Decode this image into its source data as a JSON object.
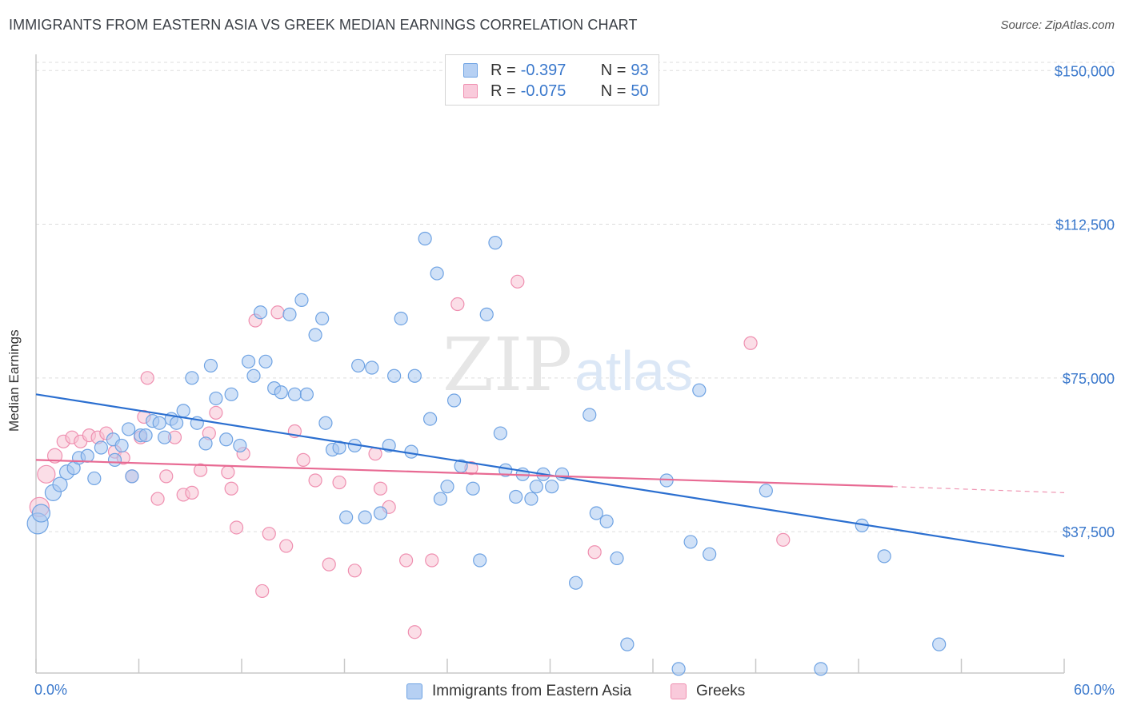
{
  "title": "IMMIGRANTS FROM EASTERN ASIA VS GREEK MEDIAN EARNINGS CORRELATION CHART",
  "source": "Source: ZipAtlas.com",
  "watermark": {
    "zip": "ZIP",
    "atlas": "atlas"
  },
  "legend": {
    "rows": [
      {
        "r_label": "R =",
        "r_value": "-0.397",
        "n_label": "N =",
        "n_value": "93"
      },
      {
        "r_label": "R =",
        "r_value": "-0.075",
        "n_label": "N =",
        "n_value": "50"
      }
    ]
  },
  "bottom_legend": [
    "Immigrants from Eastern Asia",
    "Greeks"
  ],
  "colors": {
    "blue": "#6fa3e3",
    "blue_fill": "#a9c8f0",
    "blue_line": "#2b6fd0",
    "pink": "#ef8fb0",
    "pink_fill": "#f7c2d4",
    "pink_line": "#e86a93",
    "tick_text": "#3a78cc",
    "grid": "#dddddd"
  },
  "chart_data": {
    "type": "scatter",
    "title": "IMMIGRANTS FROM EASTERN ASIA VS GREEK MEDIAN EARNINGS CORRELATION CHART",
    "xlabel": "",
    "ylabel": "Median Earnings",
    "xlim": [
      0,
      60
    ],
    "ylim": [
      3000,
      152000
    ],
    "x_tick_labels": [
      "0.0%",
      "60.0%"
    ],
    "y_ticks": [
      {
        "value": 37500,
        "label": "$37,500"
      },
      {
        "value": 75000,
        "label": "$75,000"
      },
      {
        "value": 112500,
        "label": "$112,500"
      },
      {
        "value": 150000,
        "label": "$150,000"
      }
    ],
    "grid": true,
    "series": [
      {
        "name": "Immigrants from Eastern Asia",
        "color": "blue",
        "r": -0.397,
        "n": 93,
        "trend": {
          "x0": 0,
          "y0": 71000,
          "x1": 60,
          "y1": 31500
        },
        "points": [
          [
            0.1,
            39500,
            13
          ],
          [
            0.3,
            42000,
            11
          ],
          [
            1.0,
            47000,
            10
          ],
          [
            1.4,
            49000,
            9
          ],
          [
            1.8,
            52000,
            9
          ],
          [
            2.2,
            53000,
            8
          ],
          [
            2.5,
            55500,
            8
          ],
          [
            3.0,
            56000,
            8
          ],
          [
            3.4,
            50500,
            8
          ],
          [
            3.8,
            58000,
            8
          ],
          [
            4.5,
            60000,
            8
          ],
          [
            4.6,
            55000,
            8
          ],
          [
            5.0,
            58500,
            8
          ],
          [
            5.4,
            62500,
            8
          ],
          [
            5.6,
            51000,
            8
          ],
          [
            6.1,
            61000,
            8
          ],
          [
            6.4,
            61000,
            8
          ],
          [
            6.8,
            64500,
            8
          ],
          [
            7.2,
            64000,
            8
          ],
          [
            7.5,
            60500,
            8
          ],
          [
            7.9,
            65000,
            8
          ],
          [
            8.2,
            64000,
            8
          ],
          [
            8.6,
            67000,
            8
          ],
          [
            9.1,
            75000,
            8
          ],
          [
            9.4,
            64000,
            8
          ],
          [
            9.9,
            59000,
            8
          ],
          [
            10.2,
            78000,
            8
          ],
          [
            10.5,
            70000,
            8
          ],
          [
            11.1,
            60000,
            8
          ],
          [
            11.4,
            71000,
            8
          ],
          [
            11.9,
            58500,
            8
          ],
          [
            12.4,
            79000,
            8
          ],
          [
            12.7,
            75500,
            8
          ],
          [
            13.1,
            91000,
            8
          ],
          [
            13.4,
            79000,
            8
          ],
          [
            13.9,
            72500,
            8
          ],
          [
            14.3,
            71500,
            8
          ],
          [
            14.8,
            90500,
            8
          ],
          [
            15.1,
            71000,
            8
          ],
          [
            15.5,
            94000,
            8
          ],
          [
            15.8,
            71000,
            8
          ],
          [
            16.3,
            85500,
            8
          ],
          [
            16.7,
            89500,
            8
          ],
          [
            16.9,
            64000,
            8
          ],
          [
            17.3,
            57500,
            8
          ],
          [
            17.7,
            58000,
            8
          ],
          [
            18.1,
            41000,
            8
          ],
          [
            18.6,
            58500,
            8
          ],
          [
            18.8,
            78000,
            8
          ],
          [
            19.2,
            41000,
            8
          ],
          [
            19.6,
            77500,
            8
          ],
          [
            20.1,
            42000,
            8
          ],
          [
            20.6,
            58500,
            8
          ],
          [
            20.9,
            75500,
            8
          ],
          [
            21.3,
            89500,
            8
          ],
          [
            21.9,
            57000,
            8
          ],
          [
            22.1,
            75500,
            8
          ],
          [
            22.7,
            109000,
            8
          ],
          [
            23.0,
            65000,
            8
          ],
          [
            23.4,
            100500,
            8
          ],
          [
            23.6,
            45500,
            8
          ],
          [
            24.0,
            48500,
            8
          ],
          [
            24.4,
            69500,
            8
          ],
          [
            24.8,
            53500,
            8
          ],
          [
            25.5,
            48000,
            8
          ],
          [
            25.9,
            30500,
            8
          ],
          [
            26.3,
            90500,
            8
          ],
          [
            26.8,
            108000,
            8
          ],
          [
            27.1,
            61500,
            8
          ],
          [
            27.4,
            52500,
            8
          ],
          [
            28.0,
            46000,
            8
          ],
          [
            28.4,
            51500,
            8
          ],
          [
            28.9,
            45500,
            8
          ],
          [
            29.2,
            48500,
            8
          ],
          [
            29.6,
            51500,
            8
          ],
          [
            30.1,
            48500,
            8
          ],
          [
            30.7,
            51500,
            8
          ],
          [
            31.5,
            25000,
            8
          ],
          [
            32.3,
            66000,
            8
          ],
          [
            32.7,
            42000,
            8
          ],
          [
            33.3,
            40000,
            8
          ],
          [
            33.9,
            31000,
            8
          ],
          [
            34.5,
            10000,
            8
          ],
          [
            36.8,
            50000,
            8
          ],
          [
            37.5,
            4000,
            8
          ],
          [
            38.2,
            35000,
            8
          ],
          [
            38.7,
            72000,
            8
          ],
          [
            39.3,
            32000,
            8
          ],
          [
            42.6,
            47500,
            8
          ],
          [
            45.8,
            4000,
            8
          ],
          [
            48.2,
            39000,
            8
          ],
          [
            49.5,
            31500,
            8
          ],
          [
            52.7,
            10000,
            8
          ]
        ]
      },
      {
        "name": "Greeks",
        "color": "pink",
        "r": -0.075,
        "n": 50,
        "trend": {
          "x0": 0,
          "y0": 55000,
          "x1": 50,
          "y1": 48500
        },
        "trend_dashed": {
          "x0": 50,
          "y0": 48500,
          "x1": 60,
          "y1": 47000
        },
        "points": [
          [
            0.2,
            43500,
            12
          ],
          [
            0.6,
            51500,
            11
          ],
          [
            1.1,
            56000,
            9
          ],
          [
            1.6,
            59500,
            8
          ],
          [
            2.1,
            60500,
            8
          ],
          [
            2.6,
            59500,
            8
          ],
          [
            3.1,
            61000,
            8
          ],
          [
            3.6,
            60500,
            8
          ],
          [
            4.1,
            61500,
            8
          ],
          [
            4.6,
            57000,
            8
          ],
          [
            5.1,
            55500,
            8
          ],
          [
            5.6,
            51000,
            8
          ],
          [
            6.1,
            60500,
            8
          ],
          [
            6.3,
            65500,
            8
          ],
          [
            6.5,
            75000,
            8
          ],
          [
            7.1,
            45500,
            8
          ],
          [
            7.6,
            51000,
            8
          ],
          [
            8.1,
            60500,
            8
          ],
          [
            8.6,
            46500,
            8
          ],
          [
            9.1,
            47000,
            8
          ],
          [
            9.6,
            52500,
            8
          ],
          [
            10.1,
            61500,
            8
          ],
          [
            10.5,
            66500,
            8
          ],
          [
            11.2,
            52000,
            8
          ],
          [
            11.4,
            48000,
            8
          ],
          [
            11.7,
            38500,
            8
          ],
          [
            12.1,
            56500,
            8
          ],
          [
            12.8,
            89000,
            8
          ],
          [
            13.2,
            23000,
            8
          ],
          [
            13.6,
            37000,
            8
          ],
          [
            14.1,
            91000,
            8
          ],
          [
            14.6,
            34000,
            8
          ],
          [
            15.1,
            62000,
            8
          ],
          [
            15.6,
            55000,
            8
          ],
          [
            16.3,
            50000,
            8
          ],
          [
            17.1,
            29500,
            8
          ],
          [
            17.7,
            49500,
            8
          ],
          [
            18.6,
            28000,
            8
          ],
          [
            19.8,
            56500,
            8
          ],
          [
            20.1,
            48000,
            8
          ],
          [
            20.6,
            43500,
            8
          ],
          [
            21.6,
            30500,
            8
          ],
          [
            22.1,
            13000,
            8
          ],
          [
            23.1,
            30500,
            8
          ],
          [
            24.6,
            93000,
            8
          ],
          [
            25.4,
            53000,
            8
          ],
          [
            28.1,
            98500,
            8
          ],
          [
            32.6,
            32500,
            8
          ],
          [
            41.7,
            83500,
            8
          ],
          [
            43.6,
            35500,
            8
          ]
        ]
      }
    ]
  }
}
